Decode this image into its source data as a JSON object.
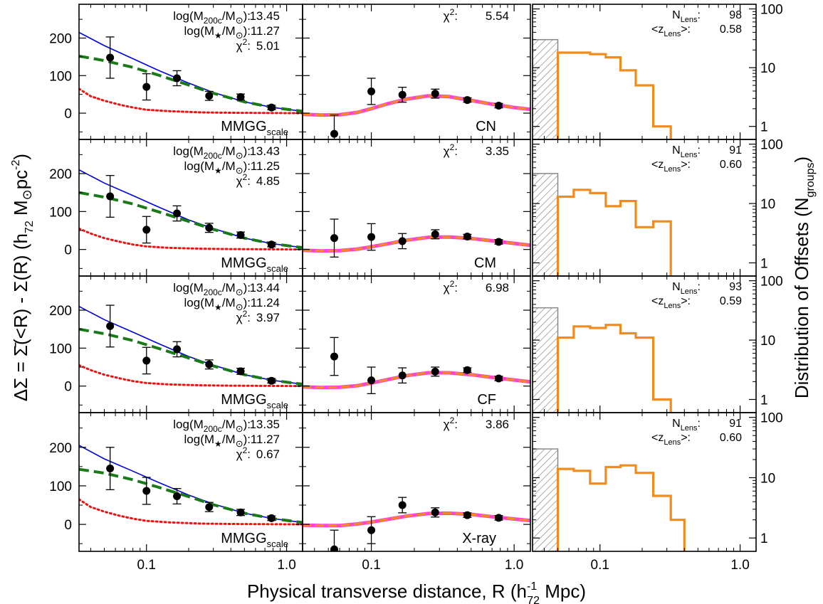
{
  "figure": {
    "xlabel": "Physical transverse distance,  R (h",
    "xlabel_sup": "-1",
    "xlabel_sub": "72",
    "xlabel_tail": " Mpc)",
    "ylabel": "ΔΣ = Σ̄(<R) - Σ(R)   (h",
    "ylabel_sub": "72",
    "ylabel_mid": " M",
    "ylabel_sun": "⊙",
    "ylabel_pc": "pc",
    "ylabel_sup": "-2",
    "ylabel_tail": ")",
    "y2label": "Distribution of Offsets (N",
    "y2label_sub": "groups",
    "y2label_tail": ")"
  },
  "colors": {
    "nfw_total": "#0000dd",
    "nfw_halo": "#1a7a1a",
    "stellar": "#ee1111",
    "offset_model_outer": "#ff44cc",
    "offset_model_inner": "#f08c1e",
    "histogram": "#f08c1e",
    "hatch": "#888888",
    "points": "#000000"
  },
  "chart_data": [
    {
      "type": "scatter",
      "panel": "MMGG_scale row 1",
      "label": "MMGG",
      "label_sub": "scale",
      "ann": {
        "l1a": "log(M",
        "l1s": "200c",
        "l1b": "/M",
        "l1c": "⊙",
        "l1d": "):",
        "l1v": "13.45",
        "l2a": "log(M",
        "l2s": "★",
        "l2b": "/M",
        "l2c": "⊙",
        "l2d": "):",
        "l2v": "11.27",
        "l3a": "χ",
        "l3s": "2",
        "l3b": ":",
        "l3v": "5.01"
      },
      "x": [
        0.055,
        0.1,
        0.165,
        0.28,
        0.47,
        0.78
      ],
      "y": [
        148,
        70,
        93,
        46,
        43,
        15
      ],
      "yerr": [
        55,
        35,
        20,
        12,
        8,
        6
      ],
      "model_total": [
        [
          0.033,
          215
        ],
        [
          0.05,
          180
        ],
        [
          0.08,
          145
        ],
        [
          0.12,
          115
        ],
        [
          0.2,
          80
        ],
        [
          0.3,
          55
        ],
        [
          0.5,
          30
        ],
        [
          0.8,
          15
        ],
        [
          1.3,
          5
        ]
      ],
      "model_halo": [
        [
          0.033,
          152
        ],
        [
          0.05,
          140
        ],
        [
          0.08,
          122
        ],
        [
          0.12,
          102
        ],
        [
          0.2,
          75
        ],
        [
          0.3,
          53
        ],
        [
          0.5,
          30
        ],
        [
          0.8,
          15
        ],
        [
          1.3,
          5
        ]
      ],
      "model_stellar": [
        [
          0.033,
          65
        ],
        [
          0.04,
          45
        ],
        [
          0.05,
          33
        ],
        [
          0.065,
          22
        ],
        [
          0.08,
          15
        ],
        [
          0.1,
          9
        ],
        [
          0.15,
          5
        ],
        [
          0.25,
          2
        ],
        [
          0.4,
          1
        ],
        [
          1.3,
          0
        ]
      ],
      "xlim": [
        0.033,
        1.3
      ],
      "ylim": [
        -70,
        290
      ],
      "xscale": "log"
    },
    {
      "type": "scatter",
      "panel": "CN",
      "label": "CN",
      "ann": {
        "l1a": "χ",
        "l1s": "2",
        "l1b": ":",
        "l1v": "5.54"
      },
      "x": [
        0.055,
        0.1,
        0.165,
        0.28,
        0.47,
        0.78
      ],
      "y": [
        -55,
        58,
        49,
        52,
        35,
        20
      ],
      "yerr": [
        50,
        35,
        20,
        12,
        6,
        6
      ],
      "model_offset": [
        [
          0.033,
          -3
        ],
        [
          0.045,
          -5
        ],
        [
          0.06,
          -4
        ],
        [
          0.08,
          2
        ],
        [
          0.1,
          12
        ],
        [
          0.13,
          25
        ],
        [
          0.18,
          38
        ],
        [
          0.25,
          46
        ],
        [
          0.35,
          44
        ],
        [
          0.5,
          34
        ],
        [
          0.7,
          24
        ],
        [
          1.0,
          15
        ],
        [
          1.3,
          10
        ]
      ],
      "xlim": [
        0.033,
        1.3
      ],
      "ylim": [
        -70,
        290
      ],
      "xscale": "log"
    },
    {
      "type": "bar",
      "panel": "Histogram row 1",
      "ann": {
        "n_a": "N",
        "n_s": "Lens",
        "n_b": ":",
        "n_v": "98",
        "z_a": "<z",
        "z_s": "Lens",
        "z_b": ">:",
        "z_v": "0.58"
      },
      "hatch_bin": [
        0.033,
        0.05
      ],
      "hatch_value": 30,
      "bin_edges": [
        0.05,
        0.065,
        0.085,
        0.11,
        0.14,
        0.18,
        0.24,
        0.32
      ],
      "values": [
        18,
        18,
        17,
        15,
        9,
        5,
        1
      ],
      "xlim": [
        0.033,
        1.3
      ],
      "ylim": [
        0.6,
        120
      ],
      "yscale": "log",
      "yticks": [
        "1",
        "10",
        "100"
      ]
    },
    {
      "type": "scatter",
      "panel": "MMGG_scale row 2",
      "label": "MMGG",
      "label_sub": "scale",
      "ann": {
        "l1a": "log(M",
        "l1s": "200c",
        "l1b": "/M",
        "l1c": "⊙",
        "l1d": "):",
        "l1v": "13.43",
        "l2a": "log(M",
        "l2s": "★",
        "l2b": "/M",
        "l2c": "⊙",
        "l2d": "):",
        "l2v": "11.25",
        "l3a": "χ",
        "l3s": "2",
        "l3b": ":",
        "l3v": "4.85"
      },
      "x": [
        0.055,
        0.1,
        0.165,
        0.28,
        0.47,
        0.78
      ],
      "y": [
        140,
        52,
        95,
        57,
        38,
        13
      ],
      "yerr": [
        55,
        35,
        20,
        12,
        8,
        6
      ],
      "model_total": [
        [
          0.033,
          210
        ],
        [
          0.05,
          175
        ],
        [
          0.08,
          142
        ],
        [
          0.12,
          113
        ],
        [
          0.2,
          78
        ],
        [
          0.3,
          55
        ],
        [
          0.5,
          30
        ],
        [
          0.8,
          15
        ],
        [
          1.3,
          5
        ]
      ],
      "model_halo": [
        [
          0.033,
          150
        ],
        [
          0.05,
          138
        ],
        [
          0.08,
          120
        ],
        [
          0.12,
          100
        ],
        [
          0.2,
          74
        ],
        [
          0.3,
          53
        ],
        [
          0.5,
          30
        ],
        [
          0.8,
          15
        ],
        [
          1.3,
          5
        ]
      ],
      "model_stellar": [
        [
          0.033,
          55
        ],
        [
          0.04,
          42
        ],
        [
          0.05,
          30
        ],
        [
          0.065,
          20
        ],
        [
          0.08,
          13
        ],
        [
          0.1,
          8
        ],
        [
          0.15,
          4
        ],
        [
          0.25,
          2
        ],
        [
          0.4,
          1
        ],
        [
          1.3,
          0
        ]
      ],
      "xlim": [
        0.033,
        1.3
      ],
      "ylim": [
        -70,
        290
      ],
      "xscale": "log"
    },
    {
      "type": "scatter",
      "panel": "CM",
      "label": "CM",
      "ann": {
        "l1a": "χ",
        "l1s": "2",
        "l1b": ":",
        "l1v": "3.35"
      },
      "x": [
        0.055,
        0.1,
        0.165,
        0.28,
        0.47,
        0.78
      ],
      "y": [
        30,
        33,
        22,
        40,
        34,
        20
      ],
      "yerr": [
        50,
        35,
        20,
        12,
        6,
        6
      ],
      "model_offset": [
        [
          0.033,
          -2
        ],
        [
          0.045,
          -4
        ],
        [
          0.06,
          -3
        ],
        [
          0.08,
          1
        ],
        [
          0.1,
          7
        ],
        [
          0.13,
          15
        ],
        [
          0.18,
          25
        ],
        [
          0.25,
          32
        ],
        [
          0.35,
          33
        ],
        [
          0.5,
          29
        ],
        [
          0.7,
          23
        ],
        [
          1.0,
          16
        ],
        [
          1.3,
          11
        ]
      ],
      "xlim": [
        0.033,
        1.3
      ],
      "ylim": [
        -70,
        290
      ],
      "xscale": "log"
    },
    {
      "type": "bar",
      "panel": "Histogram row 2",
      "ann": {
        "n_a": "N",
        "n_s": "Lens",
        "n_b": ":",
        "n_v": "91",
        "z_a": "<z",
        "z_s": "Lens",
        "z_b": ">:",
        "z_v": "0.60"
      },
      "hatch_bin": [
        0.033,
        0.05
      ],
      "hatch_value": 32,
      "bin_edges": [
        0.05,
        0.065,
        0.085,
        0.11,
        0.14,
        0.18,
        0.24,
        0.32
      ],
      "values": [
        13,
        17,
        15,
        9,
        11,
        4,
        5
      ],
      "xlim": [
        0.033,
        1.3
      ],
      "ylim": [
        0.6,
        120
      ],
      "yscale": "log",
      "yticks": [
        "1",
        "10",
        "100"
      ]
    },
    {
      "type": "scatter",
      "panel": "MMGG_scale row 3",
      "label": "MMGG",
      "label_sub": "scale",
      "ann": {
        "l1a": "log(M",
        "l1s": "200c",
        "l1b": "/M",
        "l1c": "⊙",
        "l1d": "):",
        "l1v": "13.44",
        "l2a": "log(M",
        "l2s": "★",
        "l2b": "/M",
        "l2c": "⊙",
        "l2d": "):",
        "l2v": "11.24",
        "l3a": "χ",
        "l3s": "2",
        "l3b": ":",
        "l3v": "3.97"
      },
      "x": [
        0.055,
        0.1,
        0.165,
        0.28,
        0.47,
        0.78
      ],
      "y": [
        158,
        67,
        97,
        57,
        39,
        14
      ],
      "yerr": [
        55,
        35,
        20,
        12,
        8,
        6
      ],
      "model_total": [
        [
          0.033,
          210
        ],
        [
          0.05,
          175
        ],
        [
          0.08,
          142
        ],
        [
          0.12,
          113
        ],
        [
          0.2,
          78
        ],
        [
          0.3,
          55
        ],
        [
          0.5,
          30
        ],
        [
          0.8,
          15
        ],
        [
          1.3,
          5
        ]
      ],
      "model_halo": [
        [
          0.033,
          150
        ],
        [
          0.05,
          138
        ],
        [
          0.08,
          120
        ],
        [
          0.12,
          100
        ],
        [
          0.2,
          74
        ],
        [
          0.3,
          53
        ],
        [
          0.5,
          30
        ],
        [
          0.8,
          15
        ],
        [
          1.3,
          5
        ]
      ],
      "model_stellar": [
        [
          0.033,
          55
        ],
        [
          0.04,
          42
        ],
        [
          0.05,
          30
        ],
        [
          0.065,
          20
        ],
        [
          0.08,
          13
        ],
        [
          0.1,
          8
        ],
        [
          0.15,
          4
        ],
        [
          0.25,
          2
        ],
        [
          0.4,
          1
        ],
        [
          1.3,
          0
        ]
      ],
      "xlim": [
        0.033,
        1.3
      ],
      "ylim": [
        -70,
        290
      ],
      "xscale": "log"
    },
    {
      "type": "scatter",
      "panel": "CF",
      "label": "CF",
      "ann": {
        "l1a": "χ",
        "l1s": "2",
        "l1b": ":",
        "l1v": "6.98"
      },
      "x": [
        0.055,
        0.1,
        0.165,
        0.28,
        0.47,
        0.78
      ],
      "y": [
        78,
        15,
        28,
        38,
        42,
        20
      ],
      "yerr": [
        50,
        35,
        20,
        12,
        6,
        6
      ],
      "model_offset": [
        [
          0.033,
          -2
        ],
        [
          0.045,
          -4
        ],
        [
          0.06,
          -3
        ],
        [
          0.08,
          1
        ],
        [
          0.1,
          8
        ],
        [
          0.13,
          17
        ],
        [
          0.18,
          28
        ],
        [
          0.25,
          35
        ],
        [
          0.35,
          35
        ],
        [
          0.5,
          30
        ],
        [
          0.7,
          23
        ],
        [
          1.0,
          16
        ],
        [
          1.3,
          11
        ]
      ],
      "xlim": [
        0.033,
        1.3
      ],
      "ylim": [
        -70,
        290
      ],
      "xscale": "log"
    },
    {
      "type": "bar",
      "panel": "Histogram row 3",
      "ann": {
        "n_a": "N",
        "n_s": "Lens",
        "n_b": ":",
        "n_v": "93",
        "z_a": "<z",
        "z_s": "Lens",
        "z_b": ">:",
        "z_v": "0.59"
      },
      "hatch_bin": [
        0.033,
        0.05
      ],
      "hatch_value": 35,
      "bin_edges": [
        0.05,
        0.065,
        0.085,
        0.11,
        0.14,
        0.18,
        0.24,
        0.32
      ],
      "values": [
        11,
        17,
        16,
        18,
        13,
        11,
        1
      ],
      "xlim": [
        0.033,
        1.3
      ],
      "ylim": [
        0.6,
        120
      ],
      "yscale": "log",
      "yticks": [
        "1",
        "10",
        "100"
      ]
    },
    {
      "type": "scatter",
      "panel": "MMGG_scale row 4",
      "label": "MMGG",
      "label_sub": "scale",
      "ann": {
        "l1a": "log(M",
        "l1s": "200c",
        "l1b": "/M",
        "l1c": "⊙",
        "l1d": "):",
        "l1v": "13.35",
        "l2a": "log(M",
        "l2s": "★",
        "l2b": "/M",
        "l2c": "⊙",
        "l2d": "):",
        "l2v": "11.27",
        "l3a": "χ",
        "l3s": "2",
        "l3b": ":",
        "l3v": "0.67"
      },
      "x": [
        0.055,
        0.1,
        0.165,
        0.28,
        0.47,
        0.78
      ],
      "y": [
        145,
        87,
        73,
        45,
        31,
        16
      ],
      "yerr": [
        55,
        35,
        20,
        12,
        8,
        6
      ],
      "model_total": [
        [
          0.033,
          205
        ],
        [
          0.05,
          170
        ],
        [
          0.08,
          138
        ],
        [
          0.12,
          110
        ],
        [
          0.2,
          76
        ],
        [
          0.3,
          53
        ],
        [
          0.5,
          29
        ],
        [
          0.8,
          15
        ],
        [
          1.3,
          5
        ]
      ],
      "model_halo": [
        [
          0.033,
          143
        ],
        [
          0.05,
          133
        ],
        [
          0.08,
          116
        ],
        [
          0.12,
          97
        ],
        [
          0.2,
          72
        ],
        [
          0.3,
          51
        ],
        [
          0.5,
          29
        ],
        [
          0.8,
          15
        ],
        [
          1.3,
          5
        ]
      ],
      "model_stellar": [
        [
          0.033,
          65
        ],
        [
          0.04,
          45
        ],
        [
          0.05,
          33
        ],
        [
          0.065,
          22
        ],
        [
          0.08,
          15
        ],
        [
          0.1,
          9
        ],
        [
          0.15,
          5
        ],
        [
          0.25,
          2
        ],
        [
          0.4,
          1
        ],
        [
          1.3,
          0
        ]
      ],
      "xlim": [
        0.033,
        1.3
      ],
      "ylim": [
        -70,
        290
      ],
      "xscale": "log"
    },
    {
      "type": "scatter",
      "panel": "X-ray",
      "label": "X-ray",
      "ann": {
        "l1a": "χ",
        "l1s": "2",
        "l1b": ":",
        "l1v": "3.86"
      },
      "x": [
        0.055,
        0.1,
        0.165,
        0.28,
        0.47,
        0.78
      ],
      "y": [
        -65,
        -15,
        50,
        31,
        24,
        17
      ],
      "yerr": [
        50,
        35,
        20,
        12,
        6,
        6
      ],
      "model_offset": [
        [
          0.033,
          -2
        ],
        [
          0.045,
          -3
        ],
        [
          0.06,
          -3
        ],
        [
          0.08,
          1
        ],
        [
          0.1,
          6
        ],
        [
          0.13,
          13
        ],
        [
          0.18,
          22
        ],
        [
          0.25,
          28
        ],
        [
          0.35,
          29
        ],
        [
          0.5,
          26
        ],
        [
          0.7,
          20
        ],
        [
          1.0,
          14
        ],
        [
          1.3,
          10
        ]
      ],
      "xlim": [
        0.033,
        1.3
      ],
      "ylim": [
        -70,
        290
      ],
      "xscale": "log"
    },
    {
      "type": "bar",
      "panel": "Histogram row 4",
      "ann": {
        "n_a": "N",
        "n_s": "Lens",
        "n_b": ":",
        "n_v": "91",
        "z_a": "<z",
        "z_s": "Lens",
        "z_b": ">:",
        "z_v": "0.60"
      },
      "hatch_bin": [
        0.033,
        0.05
      ],
      "hatch_value": 30,
      "bin_edges": [
        0.05,
        0.065,
        0.085,
        0.11,
        0.14,
        0.18,
        0.24,
        0.32,
        0.4
      ],
      "values": [
        14,
        13,
        8,
        15,
        16,
        12,
        5,
        2
      ],
      "xlim": [
        0.033,
        1.3
      ],
      "ylim": [
        0.6,
        120
      ],
      "yscale": "log",
      "yticks": [
        "1",
        "10",
        "100"
      ]
    }
  ],
  "axis_ticks": {
    "left_y": [
      "200",
      "100",
      "0"
    ],
    "x": [
      "0.1",
      "1.0"
    ]
  }
}
